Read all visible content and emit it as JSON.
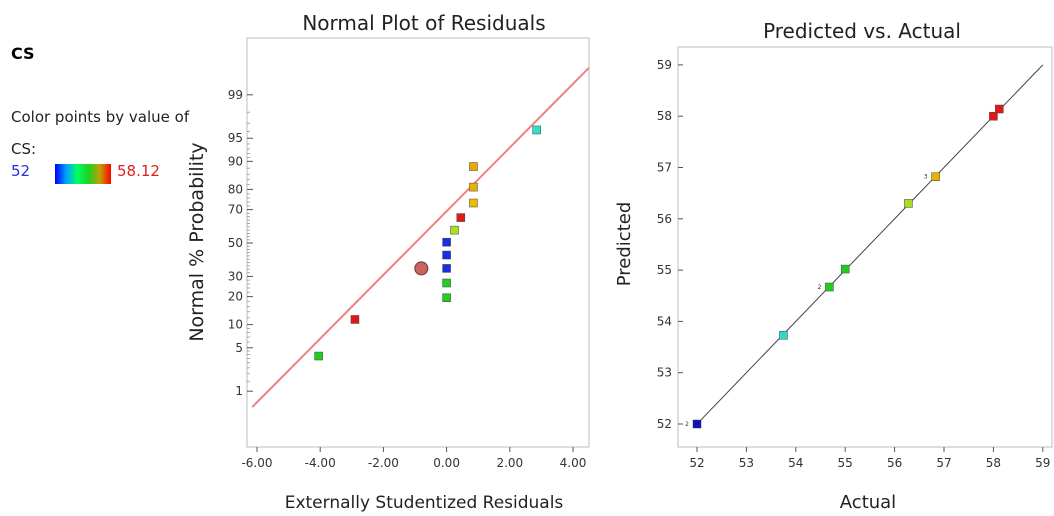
{
  "sidebar": {
    "response_name": "CS",
    "color_label": "Color points by value of CS:",
    "legend_min": "52",
    "legend_max": "58.12"
  },
  "chart_data": [
    {
      "type": "scatter",
      "title": "Normal Plot of Residuals",
      "xlabel": "Externally Studentized Residuals",
      "ylabel": "Normal % Probability",
      "x_ticks": [
        "-6.00",
        "-4.00",
        "-2.00",
        "0.00",
        "2.00",
        "4.00"
      ],
      "y_ticks": [
        "1",
        "5",
        "10",
        "20",
        "30",
        "50",
        "70",
        "80",
        "90",
        "95",
        "99"
      ],
      "y_scale": "normal-probability",
      "xlim": [
        -6.5,
        4.5
      ],
      "fit_line": [
        [
          -6.15,
          0.5
        ],
        [
          4.5,
          99.7
        ]
      ],
      "highlight": {
        "x": -0.8,
        "y": 34.5,
        "color": "#c86464"
      },
      "points": [
        {
          "x": -4.05,
          "y": 3.8,
          "color": "#22cc22"
        },
        {
          "x": -2.9,
          "y": 11.5,
          "color": "#e01818"
        },
        {
          "x": 0.0,
          "y": 19.5,
          "color": "#22cc22"
        },
        {
          "x": 0.0,
          "y": 26.5,
          "color": "#22cc22"
        },
        {
          "x": 0.0,
          "y": 34.5,
          "color": "#1530e0"
        },
        {
          "x": 0.0,
          "y": 42.5,
          "color": "#1530e0"
        },
        {
          "x": 0.0,
          "y": 50.5,
          "color": "#1530e0"
        },
        {
          "x": 0.25,
          "y": 58.0,
          "color": "#a8e020"
        },
        {
          "x": 0.45,
          "y": 65.5,
          "color": "#e01818"
        },
        {
          "x": 0.85,
          "y": 73.5,
          "color": "#e8c000"
        },
        {
          "x": 0.85,
          "y": 81.0,
          "color": "#e8b000"
        },
        {
          "x": 0.85,
          "y": 88.5,
          "color": "#e8a800"
        },
        {
          "x": 2.85,
          "y": 96.2,
          "color": "#30e0c8"
        }
      ]
    },
    {
      "type": "scatter",
      "title": "Predicted vs. Actual",
      "xlabel": "Actual",
      "ylabel": "Predicted",
      "x_ticks": [
        "52",
        "53",
        "54",
        "55",
        "56",
        "57",
        "58",
        "59"
      ],
      "y_ticks": [
        "52",
        "53",
        "54",
        "55",
        "56",
        "57",
        "58",
        "59"
      ],
      "xlim": [
        51.8,
        59.1
      ],
      "ylim": [
        51.55,
        59.3
      ],
      "fit_line": [
        [
          51.95,
          51.95
        ],
        [
          59.0,
          59.0
        ]
      ],
      "points": [
        {
          "x": 52.0,
          "y": 52.0,
          "color": "#1010c0",
          "count": "2"
        },
        {
          "x": 53.75,
          "y": 53.73,
          "color": "#30d8c8"
        },
        {
          "x": 54.68,
          "y": 54.67,
          "color": "#22cc22",
          "count": "2"
        },
        {
          "x": 55.0,
          "y": 55.02,
          "color": "#22cc22"
        },
        {
          "x": 56.28,
          "y": 56.3,
          "color": "#a8e020"
        },
        {
          "x": 56.83,
          "y": 56.82,
          "color": "#e8b000",
          "count": "3"
        },
        {
          "x": 58.0,
          "y": 58.0,
          "color": "#e01818"
        },
        {
          "x": 58.12,
          "y": 58.14,
          "color": "#e01818"
        }
      ]
    }
  ]
}
